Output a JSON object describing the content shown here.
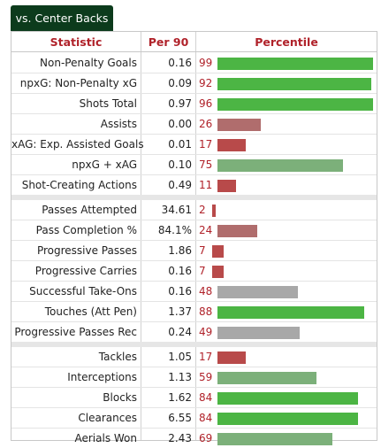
{
  "tab": {
    "label": "vs. Center Backs"
  },
  "headers": {
    "statistic": "Statistic",
    "per90": "Per 90",
    "percentile": "Percentile"
  },
  "colors": {
    "high": "#4cb544",
    "mid_high": "#7cb07a",
    "neutral": "#a8a8a8",
    "low": "#b06d6d",
    "very_low": "#b84a4a"
  },
  "groups": [
    {
      "rows": [
        {
          "stat": "Non-Penalty Goals",
          "per90": "0.16",
          "percentile": "99",
          "color": "high"
        },
        {
          "stat": "npxG: Non-Penalty xG",
          "per90": "0.09",
          "percentile": "92",
          "color": "high"
        },
        {
          "stat": "Shots Total",
          "per90": "0.97",
          "percentile": "96",
          "color": "high"
        },
        {
          "stat": "Assists",
          "per90": "0.00",
          "percentile": "26",
          "color": "low"
        },
        {
          "stat": "xAG: Exp. Assisted Goals",
          "per90": "0.01",
          "percentile": "17",
          "color": "very_low"
        },
        {
          "stat": "npxG + xAG",
          "per90": "0.10",
          "percentile": "75",
          "color": "mid_high"
        },
        {
          "stat": "Shot-Creating Actions",
          "per90": "0.49",
          "percentile": "11",
          "color": "very_low"
        }
      ]
    },
    {
      "rows": [
        {
          "stat": "Passes Attempted",
          "per90": "34.61",
          "percentile": "2",
          "color": "very_low"
        },
        {
          "stat": "Pass Completion %",
          "per90": "84.1%",
          "percentile": "24",
          "color": "low"
        },
        {
          "stat": "Progressive Passes",
          "per90": "1.86",
          "percentile": "7",
          "color": "very_low"
        },
        {
          "stat": "Progressive Carries",
          "per90": "0.16",
          "percentile": "7",
          "color": "very_low"
        },
        {
          "stat": "Successful Take-Ons",
          "per90": "0.16",
          "percentile": "48",
          "color": "neutral"
        },
        {
          "stat": "Touches (Att Pen)",
          "per90": "1.37",
          "percentile": "88",
          "color": "high"
        },
        {
          "stat": "Progressive Passes Rec",
          "per90": "0.24",
          "percentile": "49",
          "color": "neutral"
        }
      ]
    },
    {
      "rows": [
        {
          "stat": "Tackles",
          "per90": "1.05",
          "percentile": "17",
          "color": "very_low"
        },
        {
          "stat": "Interceptions",
          "per90": "1.13",
          "percentile": "59",
          "color": "mid_high"
        },
        {
          "stat": "Blocks",
          "per90": "1.62",
          "percentile": "84",
          "color": "high"
        },
        {
          "stat": "Clearances",
          "per90": "6.55",
          "percentile": "84",
          "color": "high"
        },
        {
          "stat": "Aerials Won",
          "per90": "2.43",
          "percentile": "69",
          "color": "mid_high"
        }
      ]
    }
  ]
}
